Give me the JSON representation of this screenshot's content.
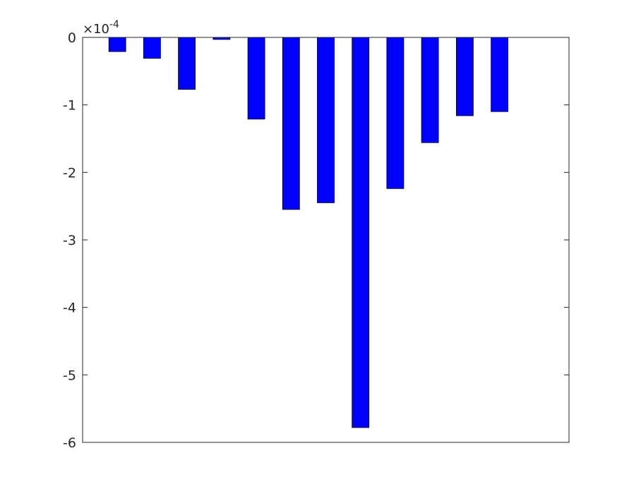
{
  "chart_data": {
    "type": "bar",
    "title": "",
    "xlabel": "",
    "ylabel": "",
    "x": [
      1,
      2,
      3,
      4,
      5,
      6,
      7,
      8,
      9,
      10,
      11,
      12
    ],
    "values": [
      -0.21,
      -0.31,
      -0.77,
      -0.03,
      -1.21,
      -2.55,
      -2.45,
      -5.78,
      -2.24,
      -1.56,
      -1.16,
      -1.1
    ],
    "scale_exponent": "-4",
    "scale_prefix": "×10",
    "ylim": [
      -6,
      0
    ],
    "xlim": [
      0,
      14
    ],
    "yticks": [
      0,
      -1,
      -2,
      -3,
      -4,
      -5,
      -6
    ],
    "ytick_labels": [
      "0",
      "-1",
      "-2",
      "-3",
      "-4",
      "-5",
      "-6"
    ],
    "grid": false,
    "bar_color": "#0000ff",
    "bar_edge_color": "#000000"
  }
}
